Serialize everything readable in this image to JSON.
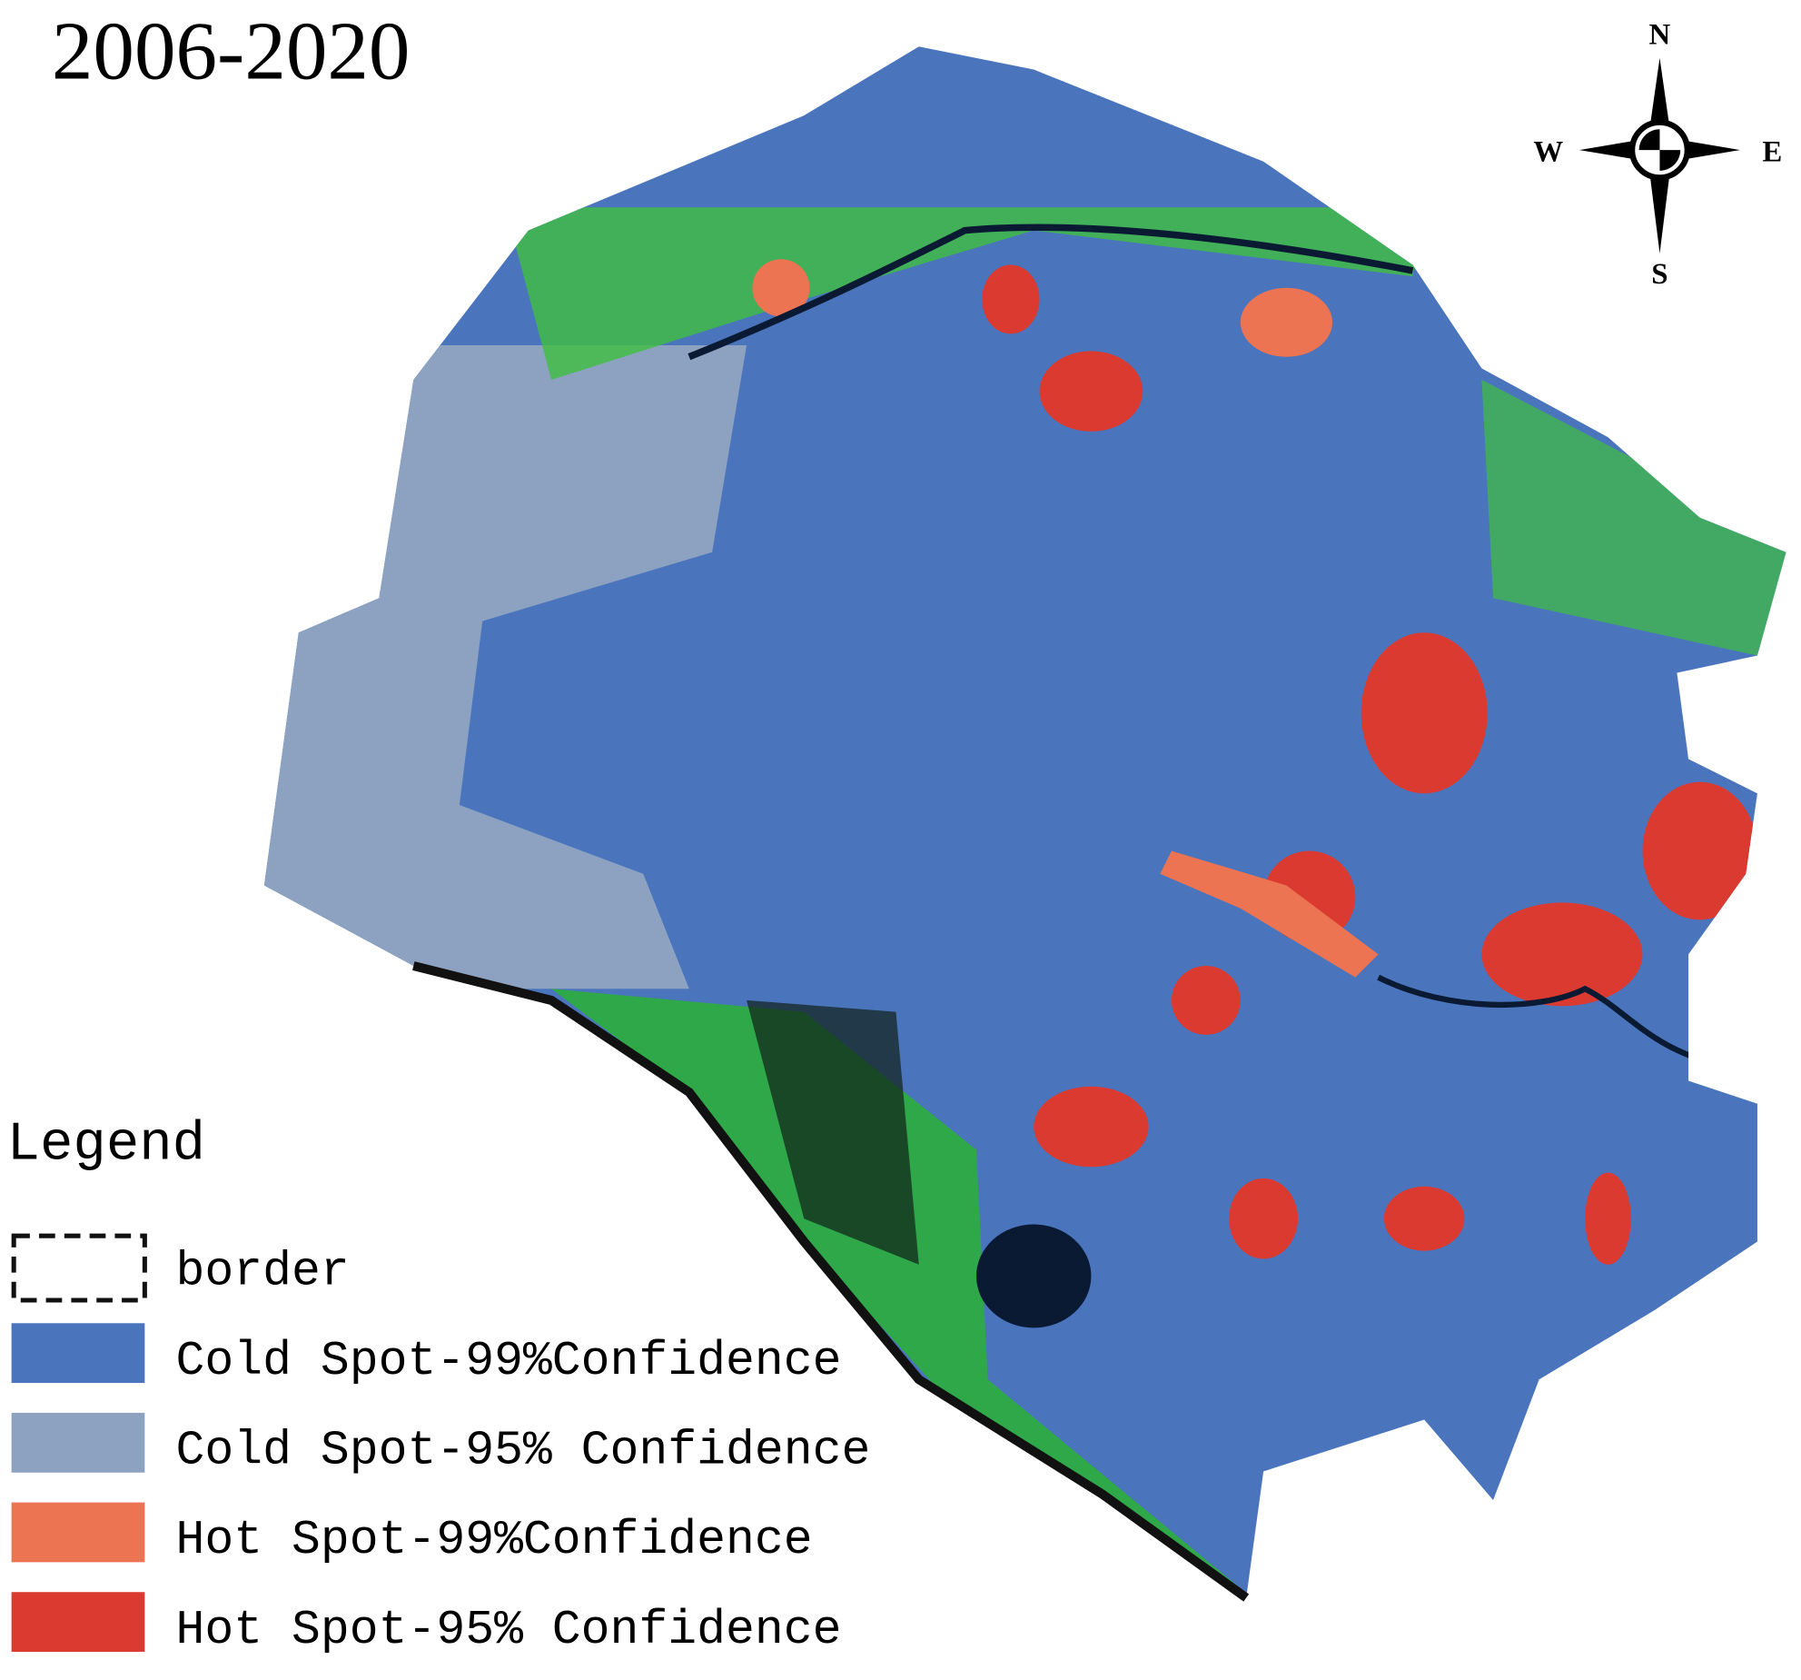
{
  "title": "2006-2020",
  "compass": {
    "north": "N",
    "south": "S",
    "west": "W",
    "east": "E"
  },
  "legend": {
    "title": "Legend",
    "items": [
      {
        "label": "border",
        "style": "dashed"
      },
      {
        "label": "Cold Spot-99%Confidence",
        "color": "#4a75bd"
      },
      {
        "label": "Cold Spot-95% Confidence",
        "color": "#8da2c0"
      },
      {
        "label": "Hot Spot-99%Confidence",
        "color": "#ec7453"
      },
      {
        "label": "Hot Spot-95% Confidence",
        "color": "#db3a31"
      }
    ]
  }
}
